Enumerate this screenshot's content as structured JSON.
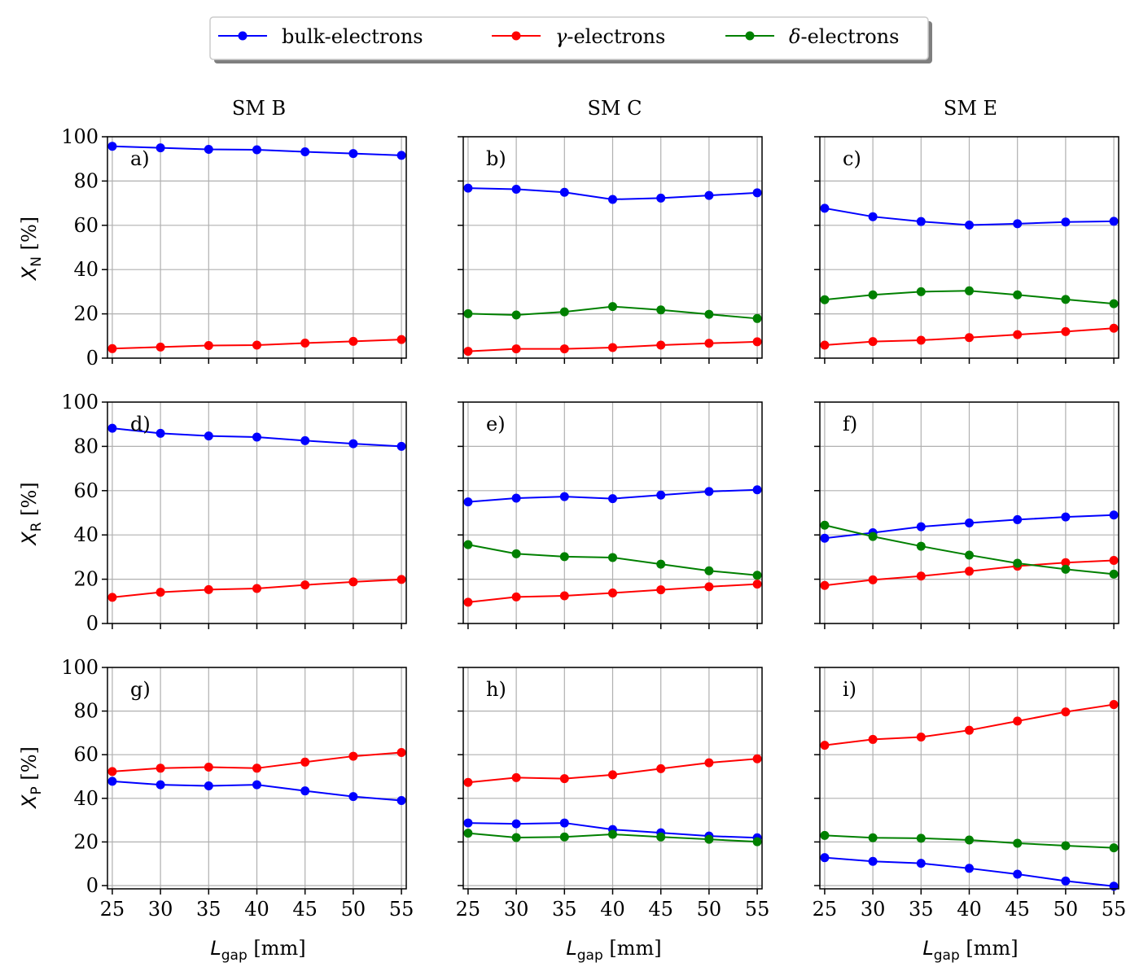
{
  "legend": {
    "items": [
      {
        "label": "bulk-electrons",
        "color": "#0000ff",
        "prefix": "",
        "suffix": ""
      },
      {
        "label": "",
        "color": "#ff0000",
        "prefix": "γ",
        "suffix": "-electrons"
      },
      {
        "label": "",
        "color": "#008000",
        "prefix": "δ",
        "suffix": "-electrons"
      }
    ]
  },
  "columns": [
    "SM B",
    "SM C",
    "SM E"
  ],
  "row_ylabels": [
    {
      "sym": "X",
      "sub": "N",
      "unit": " [%]"
    },
    {
      "sym": "X",
      "sub": "R",
      "unit": " [%]"
    },
    {
      "sym": "X",
      "sub": "P",
      "unit": " [%]"
    }
  ],
  "xlabel": {
    "sym": "L",
    "sub": "gap",
    "unit": " [mm]"
  },
  "chart_data": [
    {
      "type": "line",
      "panel": "a)",
      "row": 0,
      "col": 0,
      "x": [
        25,
        30,
        35,
        40,
        45,
        50,
        55
      ],
      "xlim": [
        24.5,
        55.5
      ],
      "ylim": [
        0,
        100
      ],
      "xticks": [
        25,
        30,
        35,
        40,
        45,
        50,
        55
      ],
      "yticks": [
        0,
        20,
        40,
        60,
        80,
        100
      ],
      "grid": true,
      "series": [
        {
          "name": "bulk-electrons",
          "color": "#0000ff",
          "values": [
            95.7,
            95.0,
            94.3,
            94.1,
            93.2,
            92.4,
            91.6
          ]
        },
        {
          "name": "γ-electrons",
          "color": "#ff0000",
          "values": [
            4.3,
            5.0,
            5.7,
            5.9,
            6.8,
            7.6,
            8.4
          ]
        }
      ]
    },
    {
      "type": "line",
      "panel": "b)",
      "row": 0,
      "col": 1,
      "x": [
        25,
        30,
        35,
        40,
        45,
        50,
        55
      ],
      "xlim": [
        24.5,
        55.5
      ],
      "ylim": [
        0,
        100
      ],
      "xticks": [
        25,
        30,
        35,
        40,
        45,
        50,
        55
      ],
      "yticks": [
        0,
        20,
        40,
        60,
        80,
        100
      ],
      "grid": true,
      "series": [
        {
          "name": "bulk-electrons",
          "color": "#0000ff",
          "values": [
            76.8,
            76.3,
            74.9,
            71.7,
            72.3,
            73.5,
            74.7
          ]
        },
        {
          "name": "γ-electrons",
          "color": "#ff0000",
          "values": [
            3.1,
            4.2,
            4.2,
            4.8,
            5.9,
            6.7,
            7.4
          ]
        },
        {
          "name": "δ-electrons",
          "color": "#008000",
          "values": [
            20.1,
            19.5,
            20.9,
            23.3,
            21.8,
            19.8,
            17.9
          ]
        }
      ]
    },
    {
      "type": "line",
      "panel": "c)",
      "row": 0,
      "col": 2,
      "x": [
        25,
        30,
        35,
        40,
        45,
        50,
        55
      ],
      "xlim": [
        24.5,
        55.5
      ],
      "ylim": [
        0,
        100
      ],
      "xticks": [
        25,
        30,
        35,
        40,
        45,
        50,
        55
      ],
      "yticks": [
        0,
        20,
        40,
        60,
        80,
        100
      ],
      "grid": true,
      "series": [
        {
          "name": "bulk-electrons",
          "color": "#0000ff",
          "values": [
            67.7,
            63.9,
            61.7,
            60.1,
            60.7,
            61.5,
            61.8
          ]
        },
        {
          "name": "γ-electrons",
          "color": "#ff0000",
          "values": [
            5.9,
            7.5,
            8.1,
            9.3,
            10.6,
            12.0,
            13.5
          ]
        },
        {
          "name": "δ-electrons",
          "color": "#008000",
          "values": [
            26.4,
            28.6,
            30.0,
            30.4,
            28.6,
            26.5,
            24.6
          ]
        }
      ]
    },
    {
      "type": "line",
      "panel": "d)",
      "row": 1,
      "col": 0,
      "x": [
        25,
        30,
        35,
        40,
        45,
        50,
        55
      ],
      "xlim": [
        24.5,
        55.5
      ],
      "ylim": [
        0,
        100
      ],
      "xticks": [
        25,
        30,
        35,
        40,
        45,
        50,
        55
      ],
      "yticks": [
        0,
        20,
        40,
        60,
        80,
        100
      ],
      "grid": true,
      "series": [
        {
          "name": "bulk-electrons",
          "color": "#0000ff",
          "values": [
            88.2,
            85.9,
            84.7,
            84.2,
            82.6,
            81.2,
            80.0
          ]
        },
        {
          "name": "γ-electrons",
          "color": "#ff0000",
          "values": [
            11.8,
            14.1,
            15.3,
            15.8,
            17.4,
            18.8,
            19.9
          ]
        }
      ]
    },
    {
      "type": "line",
      "panel": "e)",
      "row": 1,
      "col": 1,
      "x": [
        25,
        30,
        35,
        40,
        45,
        50,
        55
      ],
      "xlim": [
        24.5,
        55.5
      ],
      "ylim": [
        0,
        100
      ],
      "xticks": [
        25,
        30,
        35,
        40,
        45,
        50,
        55
      ],
      "yticks": [
        0,
        20,
        40,
        60,
        80,
        100
      ],
      "grid": true,
      "series": [
        {
          "name": "bulk-electrons",
          "color": "#0000ff",
          "values": [
            54.9,
            56.6,
            57.3,
            56.4,
            58.0,
            59.6,
            60.4
          ]
        },
        {
          "name": "γ-electrons",
          "color": "#ff0000",
          "values": [
            9.6,
            12.0,
            12.5,
            13.8,
            15.2,
            16.6,
            17.8
          ]
        },
        {
          "name": "δ-electrons",
          "color": "#008000",
          "values": [
            35.6,
            31.5,
            30.2,
            29.8,
            26.8,
            23.8,
            21.8
          ]
        }
      ]
    },
    {
      "type": "line",
      "panel": "f)",
      "row": 1,
      "col": 2,
      "x": [
        25,
        30,
        35,
        40,
        45,
        50,
        55
      ],
      "xlim": [
        24.5,
        55.5
      ],
      "ylim": [
        0,
        100
      ],
      "xticks": [
        25,
        30,
        35,
        40,
        45,
        50,
        55
      ],
      "yticks": [
        0,
        20,
        40,
        60,
        80,
        100
      ],
      "grid": true,
      "series": [
        {
          "name": "bulk-electrons",
          "color": "#0000ff",
          "values": [
            38.5,
            41.0,
            43.7,
            45.4,
            46.9,
            48.1,
            49.0
          ]
        },
        {
          "name": "γ-electrons",
          "color": "#ff0000",
          "values": [
            17.2,
            19.7,
            21.4,
            23.6,
            25.9,
            27.5,
            28.5
          ]
        },
        {
          "name": "δ-electrons",
          "color": "#008000",
          "values": [
            44.4,
            39.3,
            34.9,
            30.9,
            27.2,
            24.5,
            22.3
          ]
        }
      ]
    },
    {
      "type": "line",
      "panel": "g)",
      "row": 2,
      "col": 0,
      "x": [
        25,
        30,
        35,
        40,
        45,
        50,
        55
      ],
      "xlim": [
        24.5,
        55.5
      ],
      "ylim": [
        -1.5,
        100
      ],
      "xticks": [
        25,
        30,
        35,
        40,
        45,
        50,
        55
      ],
      "yticks": [
        0,
        20,
        40,
        60,
        80,
        100
      ],
      "grid": true,
      "series": [
        {
          "name": "bulk-electrons",
          "color": "#0000ff",
          "values": [
            47.8,
            46.2,
            45.7,
            46.2,
            43.4,
            40.8,
            39.0
          ]
        },
        {
          "name": "γ-electrons",
          "color": "#ff0000",
          "values": [
            52.3,
            53.8,
            54.3,
            53.8,
            56.6,
            59.3,
            61.0
          ]
        }
      ]
    },
    {
      "type": "line",
      "panel": "h)",
      "row": 2,
      "col": 1,
      "x": [
        25,
        30,
        35,
        40,
        45,
        50,
        55
      ],
      "xlim": [
        24.5,
        55.5
      ],
      "ylim": [
        -1.5,
        100
      ],
      "xticks": [
        25,
        30,
        35,
        40,
        45,
        50,
        55
      ],
      "yticks": [
        0,
        20,
        40,
        60,
        80,
        100
      ],
      "grid": true,
      "series": [
        {
          "name": "bulk-electrons",
          "color": "#0000ff",
          "values": [
            28.7,
            28.3,
            28.7,
            25.7,
            24.2,
            22.7,
            21.9
          ]
        },
        {
          "name": "γ-electrons",
          "color": "#ff0000",
          "values": [
            47.3,
            49.5,
            49.0,
            50.8,
            53.6,
            56.3,
            58.1
          ]
        },
        {
          "name": "δ-electrons",
          "color": "#008000",
          "values": [
            24.0,
            22.0,
            22.3,
            23.5,
            22.3,
            21.2,
            20.1
          ]
        }
      ]
    },
    {
      "type": "line",
      "panel": "i)",
      "row": 2,
      "col": 2,
      "x": [
        25,
        30,
        35,
        40,
        45,
        50,
        55
      ],
      "xlim": [
        24.5,
        55.5
      ],
      "ylim": [
        -1.5,
        100
      ],
      "xticks": [
        25,
        30,
        35,
        40,
        45,
        50,
        55
      ],
      "yticks": [
        0,
        20,
        40,
        60,
        80,
        100
      ],
      "grid": true,
      "series": [
        {
          "name": "bulk-electrons",
          "color": "#0000ff",
          "values": [
            12.8,
            11.1,
            10.2,
            7.9,
            5.2,
            2.1,
            -0.3
          ]
        },
        {
          "name": "γ-electrons",
          "color": "#ff0000",
          "values": [
            64.3,
            67.0,
            68.1,
            71.2,
            75.4,
            79.6,
            83.0
          ]
        },
        {
          "name": "δ-electrons",
          "color": "#008000",
          "values": [
            23.0,
            21.9,
            21.7,
            20.9,
            19.4,
            18.3,
            17.3
          ]
        }
      ]
    }
  ]
}
